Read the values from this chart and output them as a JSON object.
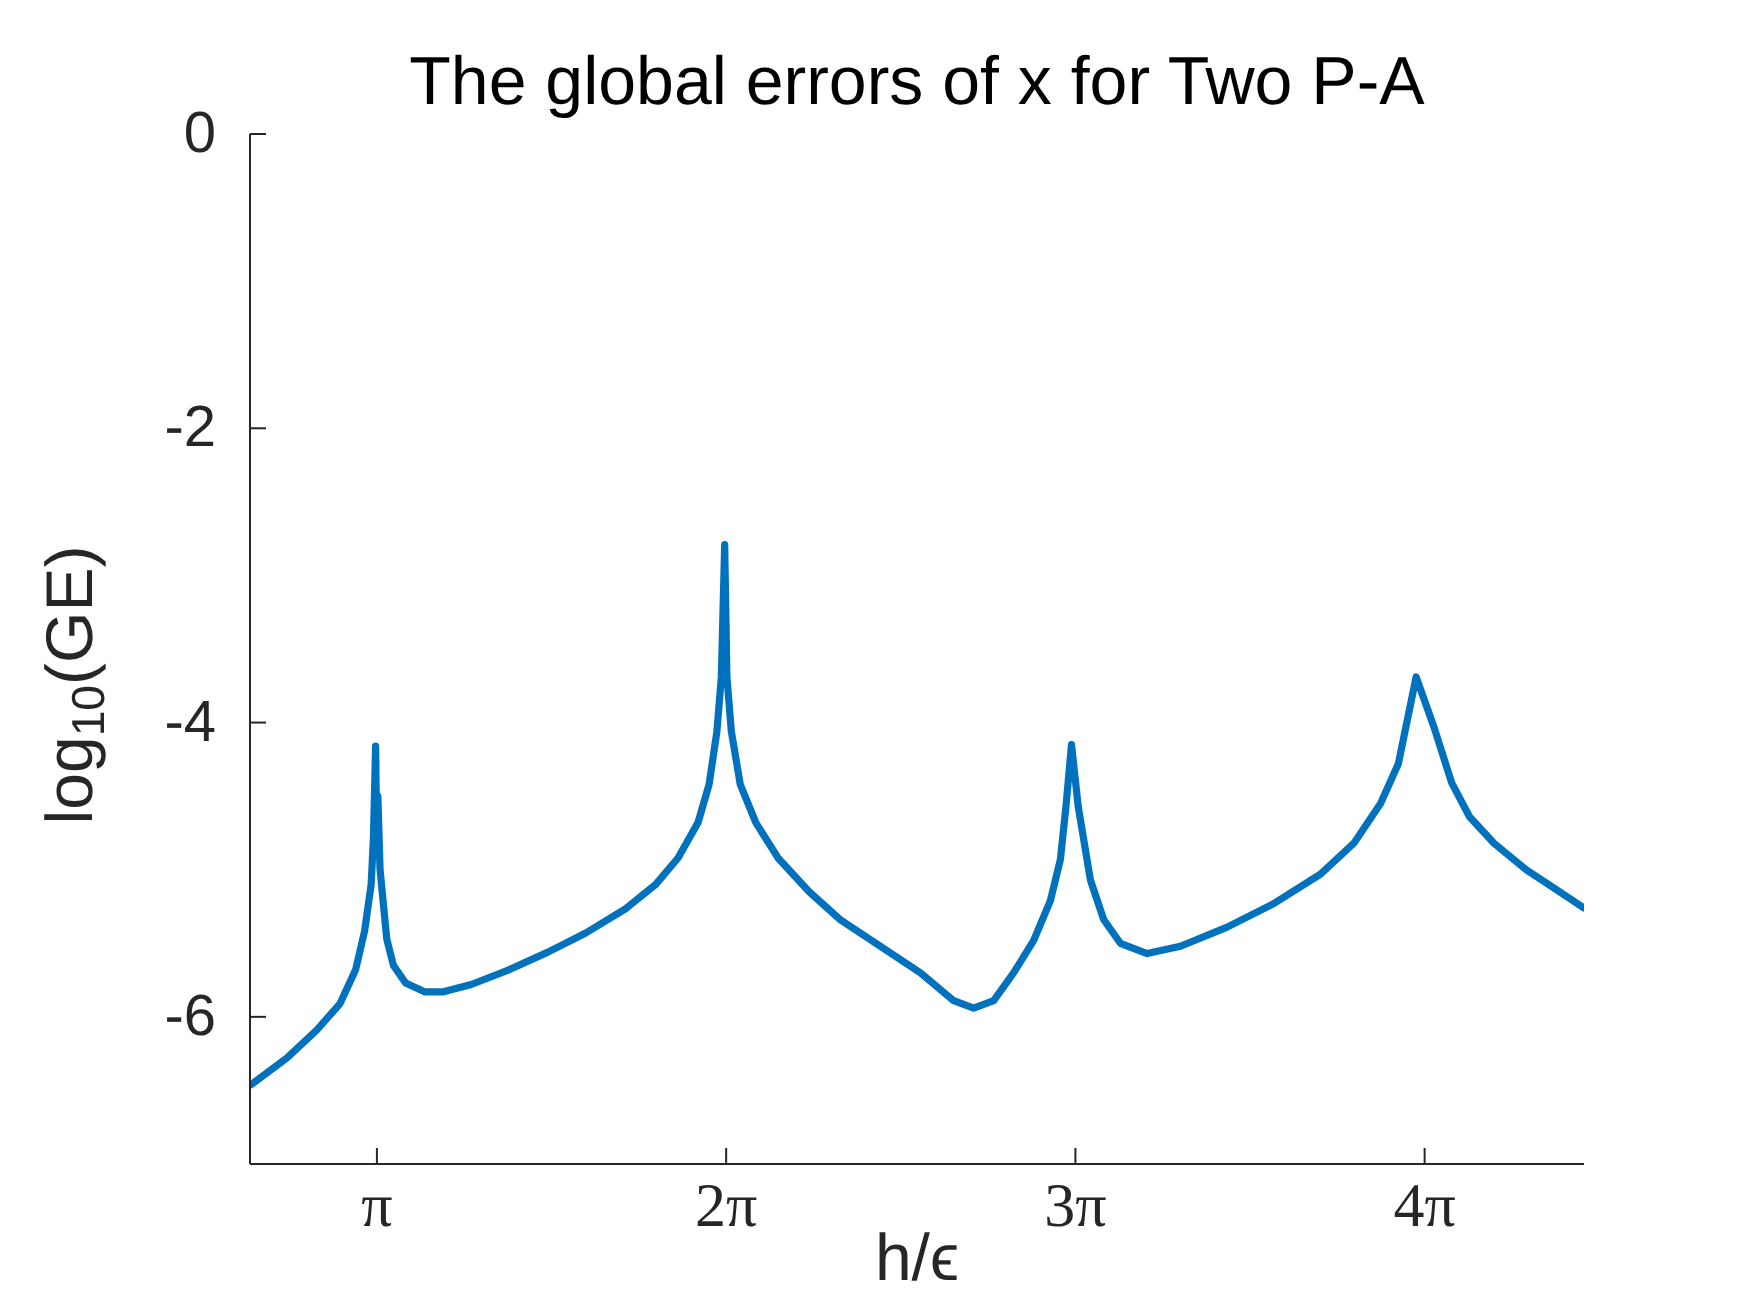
{
  "chart_data": {
    "type": "line",
    "title": "The global errors of x for Two P-A",
    "xlabel": "h/ϵ",
    "ylabel": "log$_{10}$(GE)",
    "x": [
      2.01,
      2.33,
      2.6,
      2.81,
      2.95,
      3.03,
      3.09,
      3.11,
      3.13,
      3.14,
      3.15,
      3.17,
      3.23,
      3.29,
      3.4,
      3.57,
      3.74,
      3.99,
      4.33,
      4.68,
      5.02,
      5.37,
      5.65,
      5.85,
      6.03,
      6.13,
      6.2,
      6.24,
      6.27,
      6.29,
      6.33,
      6.41,
      6.55,
      6.75,
      7.03,
      7.31,
      7.67,
      8.03,
      8.33,
      8.51,
      8.69,
      8.87,
      9.05,
      9.2,
      9.29,
      9.34,
      9.39,
      9.45,
      9.56,
      9.68,
      9.83,
      10.07,
      10.37,
      10.79,
      11.21,
      11.63,
      11.93,
      12.17,
      12.33,
      12.49,
      12.65,
      12.81,
      12.97,
      13.19,
      13.48,
      13.78,
      14.0
    ],
    "series": [
      {
        "color": "#0072bd",
        "values": [
          -6.46,
          -6.28,
          -6.09,
          -5.91,
          -5.68,
          -5.42,
          -5.1,
          -4.79,
          -4.16,
          -4.8,
          -4.5,
          -5.0,
          -5.47,
          -5.65,
          -5.77,
          -5.83,
          -5.83,
          -5.78,
          -5.68,
          -5.56,
          -5.43,
          -5.27,
          -5.1,
          -4.92,
          -4.68,
          -4.42,
          -4.06,
          -3.69,
          -2.79,
          -3.69,
          -4.06,
          -4.42,
          -4.68,
          -4.92,
          -5.15,
          -5.34,
          -5.52,
          -5.7,
          -5.89,
          -5.94,
          -5.89,
          -5.7,
          -5.48,
          -5.21,
          -4.93,
          -4.57,
          -4.15,
          -4.57,
          -5.07,
          -5.34,
          -5.5,
          -5.57,
          -5.52,
          -5.39,
          -5.23,
          -5.03,
          -4.82,
          -4.55,
          -4.28,
          -3.69,
          -4.03,
          -4.41,
          -4.64,
          -4.82,
          -5.0,
          -5.15,
          -5.26
        ]
      }
    ],
    "xlim": [
      2,
      14
    ],
    "xticks": [
      {
        "value": 3.1416,
        "label": "π"
      },
      {
        "value": 6.2832,
        "label": "2π"
      },
      {
        "value": 9.4248,
        "label": "3π"
      },
      {
        "value": 12.5664,
        "label": "4π"
      }
    ],
    "ylim": [
      -7,
      0
    ],
    "yticks": [
      0,
      -2,
      -4,
      -6
    ],
    "line_style": "solid"
  }
}
